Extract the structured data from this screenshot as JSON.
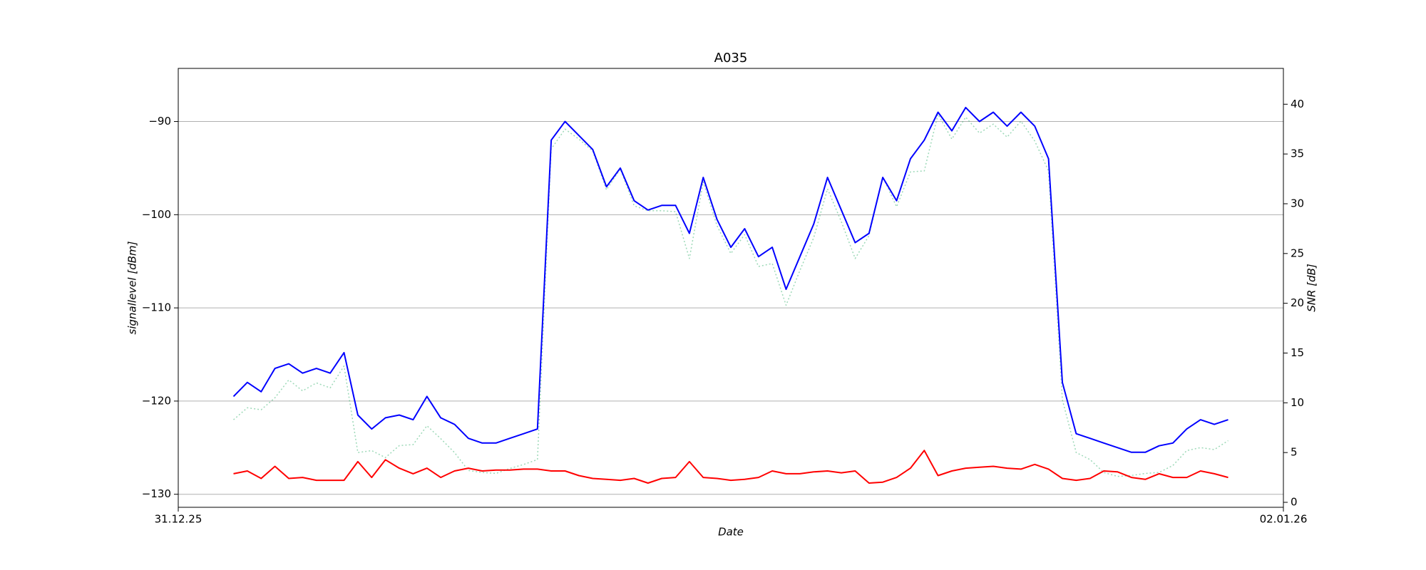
{
  "chart_data": {
    "type": "line",
    "title": "A035",
    "xlabel": "Date",
    "ylabel": "signallevel [dBm]",
    "y2label": "SNR [dB]",
    "xlim": [
      0,
      2
    ],
    "xticks": [
      {
        "value": 0,
        "label": "31.12.25"
      },
      {
        "value": 2,
        "label": "02.01.26"
      }
    ],
    "ylim": [
      -131.4,
      -84.3
    ],
    "yticks": [
      {
        "value": -130,
        "label": "−130"
      },
      {
        "value": -120,
        "label": "−120"
      },
      {
        "value": -110,
        "label": "−110"
      },
      {
        "value": -100,
        "label": "−100"
      },
      {
        "value": -90,
        "label": "−90"
      }
    ],
    "y2lim": [
      -0.5,
      43.6
    ],
    "y2ticks": [
      0,
      5,
      10,
      15,
      20,
      25,
      30,
      35,
      40
    ],
    "grid": true,
    "x": [
      0.1,
      0.125,
      0.15,
      0.175,
      0.2,
      0.225,
      0.25,
      0.275,
      0.3,
      0.325,
      0.35,
      0.375,
      0.4,
      0.425,
      0.45,
      0.475,
      0.5,
      0.525,
      0.55,
      0.575,
      0.6,
      0.625,
      0.65,
      0.675,
      0.7,
      0.725,
      0.75,
      0.775,
      0.8,
      0.825,
      0.85,
      0.875,
      0.9,
      0.925,
      0.95,
      0.975,
      1,
      1.025,
      1.05,
      1.075,
      1.1,
      1.125,
      1.15,
      1.175,
      1.2,
      1.225,
      1.25,
      1.275,
      1.3,
      1.325,
      1.35,
      1.375,
      1.4,
      1.425,
      1.45,
      1.475,
      1.5,
      1.525,
      1.55,
      1.575,
      1.6,
      1.625,
      1.65,
      1.675,
      1.7,
      1.725,
      1.75,
      1.775,
      1.8,
      1.825,
      1.85,
      1.875,
      1.9
    ],
    "series": [
      {
        "color": "#3cb371",
        "axis": "y2",
        "linestyle": "dotted",
        "values": [
          8.3,
          9.5,
          9.3,
          10.5,
          12.3,
          11.2,
          12,
          11.5,
          13.7,
          5,
          5.2,
          4.5,
          5.7,
          5.8,
          7.7,
          6.4,
          5,
          3.2,
          3,
          2.9,
          3.4,
          3.8,
          4.3,
          35.5,
          37.5,
          36.5,
          35.3,
          31.4,
          33.5,
          29.8,
          29.3,
          29.3,
          29.2,
          24.5,
          32.2,
          27.8,
          25,
          26.9,
          23.7,
          24,
          19.8,
          23.3,
          26.6,
          31.5,
          28.2,
          24.5,
          26.8,
          32.7,
          29.7,
          33.2,
          33.3,
          39,
          36.5,
          38.7,
          37.1,
          38,
          36.7,
          38.3,
          36.3,
          33.3,
          10.3,
          5,
          4.3,
          3,
          2.6,
          2.7,
          2.9,
          3,
          3.7,
          5.2,
          5.5,
          5.3,
          6.2
        ]
      },
      {
        "color": "#0000ff",
        "values": [
          -119.5,
          -118,
          -119,
          -116.5,
          -116,
          -117,
          -116.5,
          -117,
          -114.8,
          -121.5,
          -123,
          -121.8,
          -121.5,
          -122,
          -119.5,
          -121.8,
          -122.5,
          -124,
          -124.5,
          -124.5,
          -124,
          -123.5,
          -123,
          -92,
          -90,
          -91.5,
          -93,
          -97,
          -95,
          -98.5,
          -99.5,
          -99,
          -99,
          -102,
          -96,
          -100.5,
          -103.5,
          -101.5,
          -104.5,
          -103.5,
          -108,
          -104.5,
          -101,
          -96,
          -99.5,
          -103,
          -102,
          -96,
          -98.5,
          -94,
          -92,
          -89,
          -91,
          -88.5,
          -90,
          -89,
          -90.5,
          -89,
          -90.5,
          -94,
          -118,
          -123.5,
          -124,
          -124.5,
          -125,
          -125.5,
          -125.5,
          -124.8,
          -124.5,
          -123,
          -122,
          -122.5,
          -122
        ]
      },
      {
        "color": "#ff0000",
        "values": [
          -127.8,
          -127.5,
          -128.3,
          -127,
          -128.3,
          -128.2,
          -128.5,
          -128.5,
          -128.5,
          -126.5,
          -128.2,
          -126.3,
          -127.2,
          -127.8,
          -127.2,
          -128.2,
          -127.5,
          -127.2,
          -127.5,
          -127.4,
          -127.4,
          -127.3,
          -127.3,
          -127.5,
          -127.5,
          -128,
          -128.3,
          -128.4,
          -128.5,
          -128.3,
          -128.8,
          -128.3,
          -128.2,
          -126.5,
          -128.2,
          -128.3,
          -128.5,
          -128.4,
          -128.2,
          -127.5,
          -127.8,
          -127.8,
          -127.6,
          -127.5,
          -127.7,
          -127.5,
          -128.8,
          -128.7,
          -128.2,
          -127.2,
          -125.3,
          -128,
          -127.5,
          -127.2,
          -127.1,
          -127,
          -127.2,
          -127.3,
          -126.8,
          -127.3,
          -128.3,
          -128.5,
          -128.3,
          -127.5,
          -127.6,
          -128.2,
          -128.4,
          -127.8,
          -128.2,
          -128.2,
          -127.5,
          -127.8,
          -128.2
        ]
      }
    ]
  }
}
